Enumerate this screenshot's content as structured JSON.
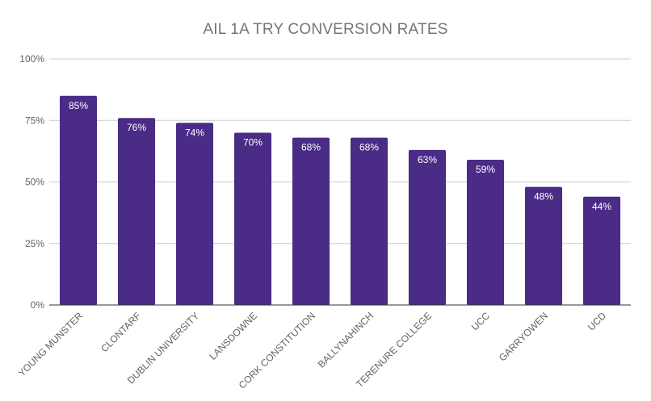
{
  "chart_data": {
    "type": "bar",
    "title": "AIL 1A TRY CONVERSION RATES",
    "xlabel": "",
    "ylabel": "",
    "categories": [
      "YOUNG MUNSTER",
      "CLONTARF",
      "DUBLIN UNIVERSITY",
      "LANSDOWNE",
      "CORK CONSTITUTION",
      "BALLYNAHINCH",
      "TERENURE COLLEGE",
      "UCC",
      "GARRYOWEN",
      "UCD"
    ],
    "values": [
      85,
      76,
      74,
      70,
      68,
      68,
      63,
      59,
      48,
      44
    ],
    "data_labels": [
      "85%",
      "76%",
      "74%",
      "70%",
      "68%",
      "68%",
      "63%",
      "59%",
      "48%",
      "44%"
    ],
    "ylim": [
      0,
      100
    ],
    "yticks": [
      0,
      25,
      50,
      75,
      100
    ],
    "ytick_labels": [
      "0%",
      "25%",
      "50%",
      "75%",
      "100%"
    ],
    "grid": true,
    "legend": "none",
    "bar_color": "#4a2c87",
    "grid_color": "#cccccc",
    "axis_color": "#333333"
  }
}
